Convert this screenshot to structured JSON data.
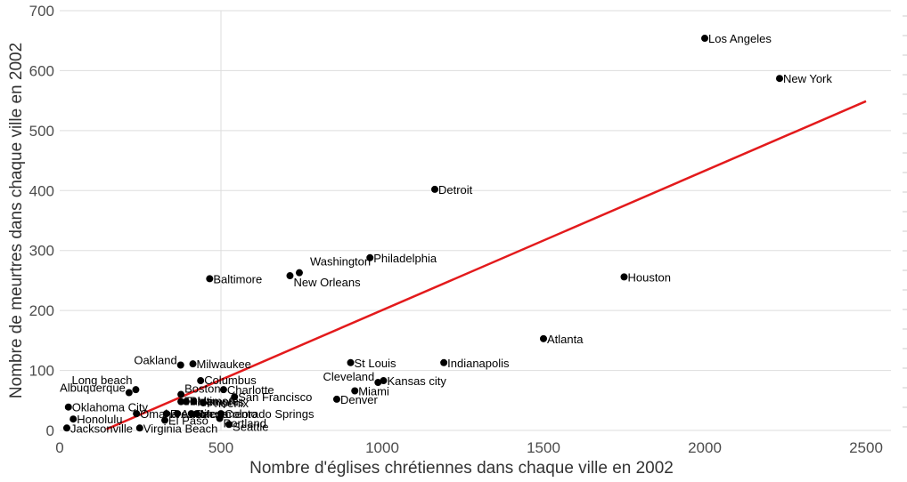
{
  "chart_data": {
    "type": "scatter",
    "xlabel": "Nombre d'églises chrétiennes dans chaque ville en 2002",
    "ylabel": "Nombre de meurtres dans chaque ville en 2002",
    "xlim": [
      0,
      2500
    ],
    "ylim": [
      0,
      700
    ],
    "x_ticks": [
      0,
      500,
      1000,
      1500,
      2000,
      2500
    ],
    "y_ticks": [
      0,
      100,
      200,
      300,
      400,
      500,
      600,
      700
    ],
    "grid": true,
    "points": [
      {
        "label": "Los Angeles",
        "x": 2000,
        "y": 654
      },
      {
        "label": "New York",
        "x": 2232,
        "y": 587
      },
      {
        "label": "Detroit",
        "x": 1163,
        "y": 402
      },
      {
        "label": "Philadelphia",
        "x": 962,
        "y": 288
      },
      {
        "label": "Houston",
        "x": 1750,
        "y": 256
      },
      {
        "label": "Washington",
        "x": 743,
        "y": 263
      },
      {
        "label": "New Orleans",
        "x": 714,
        "y": 258
      },
      {
        "label": "Baltimore",
        "x": 465,
        "y": 253
      },
      {
        "label": "Atlanta",
        "x": 1500,
        "y": 153
      },
      {
        "label": "St Louis",
        "x": 902,
        "y": 113
      },
      {
        "label": "Indianapolis",
        "x": 1191,
        "y": 113
      },
      {
        "label": "Milwaukee",
        "x": 413,
        "y": 111
      },
      {
        "label": "Oakland",
        "x": 375,
        "y": 109
      },
      {
        "label": "Columbus",
        "x": 437,
        "y": 83
      },
      {
        "label": "Cleveland",
        "x": 987,
        "y": 80
      },
      {
        "label": "Kansas city",
        "x": 1004,
        "y": 83
      },
      {
        "label": "Charlotte",
        "x": 508,
        "y": 68
      },
      {
        "label": "Miami",
        "x": 915,
        "y": 66
      },
      {
        "label": "Long beach",
        "x": 236,
        "y": 68
      },
      {
        "label": "Albuquerque",
        "x": 215,
        "y": 63
      },
      {
        "label": "Boston",
        "x": 376,
        "y": 60
      },
      {
        "label": "San Francisco",
        "x": 542,
        "y": 56
      },
      {
        "label": "Denver",
        "x": 859,
        "y": 52
      },
      {
        "label": "Memphis",
        "x": 415,
        "y": 48
      },
      {
        "label": "Tulsa",
        "x": 376,
        "y": 48
      },
      {
        "label": "Baltimore",
        "x": 392,
        "y": 48
      },
      {
        "label": "Phoenix",
        "x": 445,
        "y": 46
      },
      {
        "label": "Oklahoma City",
        "x": 27,
        "y": 39
      },
      {
        "label": "Omaha",
        "x": 238,
        "y": 28
      },
      {
        "label": "Fresno",
        "x": 331,
        "y": 28
      },
      {
        "label": "Austin",
        "x": 365,
        "y": 28
      },
      {
        "label": "Sacramento",
        "x": 408,
        "y": 28
      },
      {
        "label": "Mesa",
        "x": 425,
        "y": 28
      },
      {
        "label": "Colorado Springs",
        "x": 500,
        "y": 28
      },
      {
        "label": "El Paso",
        "x": 326,
        "y": 17
      },
      {
        "label": "Portland",
        "x": 496,
        "y": 20
      },
      {
        "label": "Honolulu",
        "x": 42,
        "y": 19
      },
      {
        "label": "Seattle",
        "x": 525,
        "y": 10
      },
      {
        "label": "Jacksonville",
        "x": 22,
        "y": 4
      },
      {
        "label": "Virginia Beach",
        "x": 248,
        "y": 4
      }
    ],
    "regression": {
      "x": [
        145,
        2500
      ],
      "y": [
        2,
        549
      ],
      "color": "#e31a1c"
    }
  },
  "colors": {
    "points": "#000000",
    "regression": "#e31a1c",
    "grid": "#dddddd",
    "tick_text": "#4d4d4d"
  }
}
